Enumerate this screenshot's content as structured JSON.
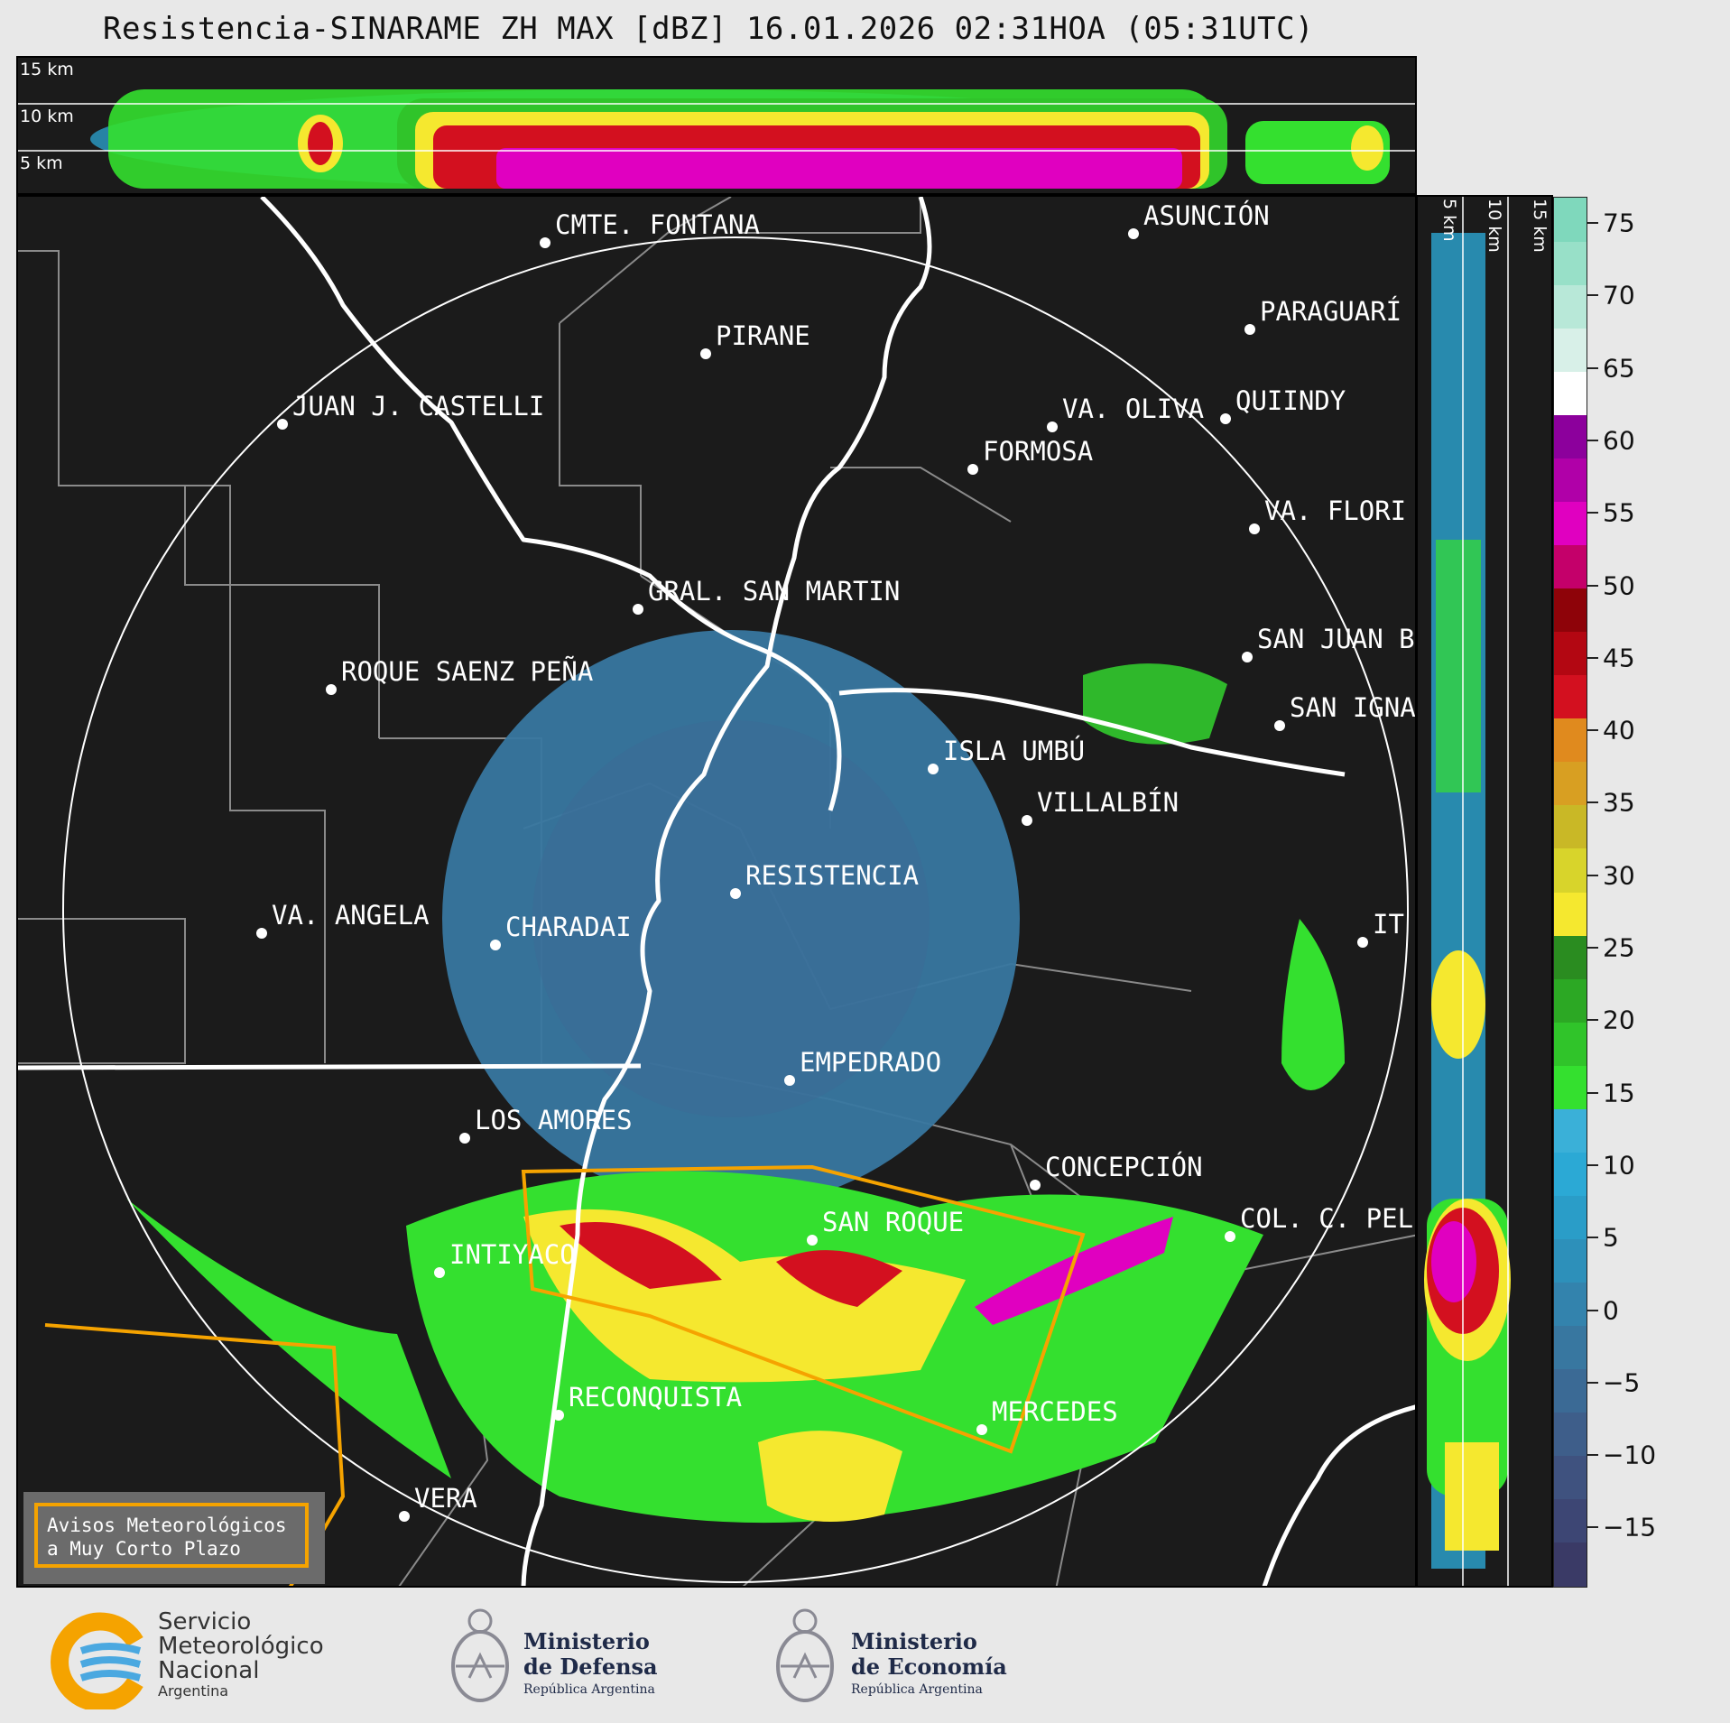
{
  "title": "Resistencia-SINARAME ZH MAX [dBZ] 16.01.2026 02:31HOA (05:31UTC)",
  "top_panel": {
    "labels": [
      "15 km",
      "10 km",
      "5 km"
    ]
  },
  "right_panel": {
    "labels": [
      "5 km",
      "10 km",
      "15 km"
    ]
  },
  "colorbar": {
    "unit": "dBZ",
    "ticks": [
      "75",
      "70",
      "65",
      "60",
      "55",
      "50",
      "45",
      "40",
      "35",
      "30",
      "25",
      "20",
      "15",
      "10",
      "5",
      "0",
      "−5",
      "−10",
      "−15"
    ],
    "colors": [
      "#3a3a66",
      "#3d4674",
      "#3f527f",
      "#3e5e8a",
      "#3b6a95",
      "#3877a0",
      "#3383ad",
      "#2d90ba",
      "#2a9dc8",
      "#2ba9d5",
      "#3ab0d8",
      "#34e02f",
      "#30c42a",
      "#2ca824",
      "#2a8c20",
      "#f5e82f",
      "#d8d42b",
      "#c9b826",
      "#d89f22",
      "#e08a1e",
      "#d3101f",
      "#b30712",
      "#8e0309",
      "#c4006a",
      "#e000c0",
      "#b000a8",
      "#8c009c",
      "#ffffff",
      "#d8f0e8",
      "#b8e8d8",
      "#98e0c8",
      "#7fd8bc"
    ]
  },
  "cities": [
    {
      "name": "CMTE. FONTANA"
    },
    {
      "name": "ASUNCIÓN"
    },
    {
      "name": "PARAGUARÍ"
    },
    {
      "name": "PIRANE"
    },
    {
      "name": "JUAN J. CASTELLI"
    },
    {
      "name": "VA. OLIVA"
    },
    {
      "name": "QUIINDY"
    },
    {
      "name": "FORMOSA"
    },
    {
      "name": "VA. FLORI"
    },
    {
      "name": "GRAL. SAN MARTIN"
    },
    {
      "name": "SAN JUAN B"
    },
    {
      "name": "ROQUE SAENZ PEÑA"
    },
    {
      "name": "SAN IGNA"
    },
    {
      "name": "ISLA UMBÚ"
    },
    {
      "name": "VILLALBÍN"
    },
    {
      "name": "RESISTENCIA"
    },
    {
      "name": "VA. ANGELA"
    },
    {
      "name": "CHARADAI"
    },
    {
      "name": "EMPEDRADO"
    },
    {
      "name": "LOS AMORES"
    },
    {
      "name": "CONCEPCIÓN"
    },
    {
      "name": "COL. C. PEL"
    },
    {
      "name": "SAN ROQUE"
    },
    {
      "name": "INTIYACO"
    },
    {
      "name": "RECONQUISTA"
    },
    {
      "name": "MERCEDES"
    },
    {
      "name": "VERA"
    },
    {
      "name": "IT"
    }
  ],
  "avisos": {
    "line1": "Avisos Meteorológicos",
    "line2": "a Muy Corto Plazo"
  },
  "footer": {
    "smn": {
      "line1": "Servicio",
      "line2": "Meteorológico",
      "line3": "Nacional",
      "line4": "Argentina"
    },
    "defensa": {
      "line1": "Ministerio",
      "line2": "de Defensa",
      "line3": "República Argentina"
    },
    "economia": {
      "line1": "Ministerio",
      "line2": "de Economía",
      "line3": "República Argentina"
    }
  }
}
